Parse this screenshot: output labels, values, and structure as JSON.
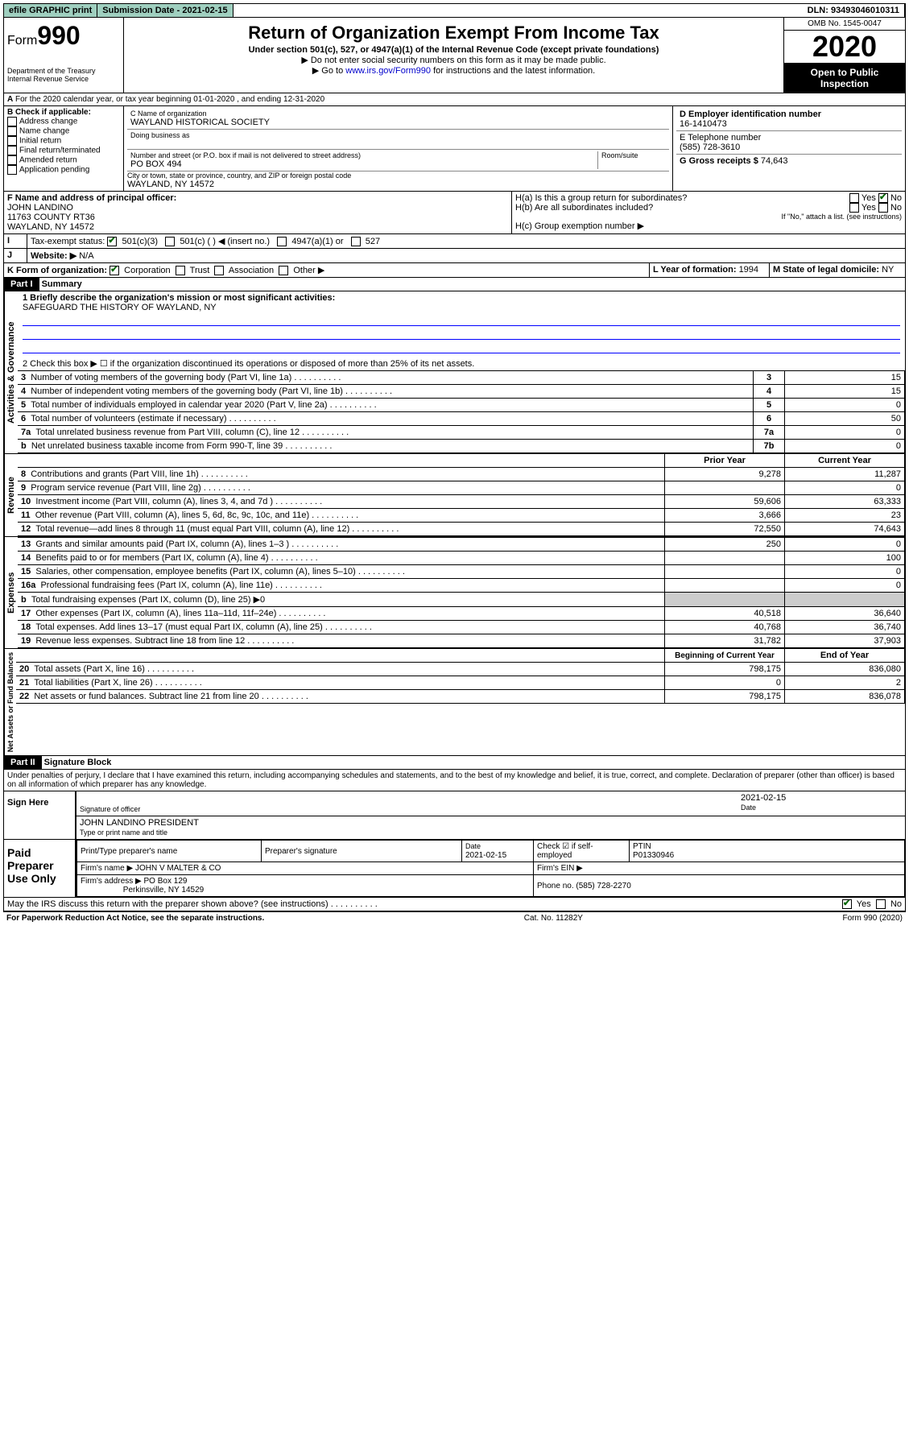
{
  "topbar": {
    "efile": "efile GRAPHIC print",
    "submission_label": "Submission Date - ",
    "submission_date": "2021-02-15",
    "dln": "DLN: 93493046010311"
  },
  "header": {
    "form_prefix": "Form",
    "form_number": "990",
    "dept": "Department of the Treasury",
    "irs": "Internal Revenue Service",
    "title": "Return of Organization Exempt From Income Tax",
    "subtitle": "Under section 501(c), 527, or 4947(a)(1) of the Internal Revenue Code (except private foundations)",
    "note1": "▶ Do not enter social security numbers on this form as it may be made public.",
    "note2_pre": "▶ Go to ",
    "note2_link": "www.irs.gov/Form990",
    "note2_post": " for instructions and the latest information.",
    "omb": "OMB No. 1545-0047",
    "year": "2020",
    "open_public": "Open to Public Inspection"
  },
  "section_a": "For the 2020 calendar year, or tax year beginning 01-01-2020   , and ending 12-31-2020",
  "box_b": {
    "title": "B Check if applicable:",
    "opts": [
      "Address change",
      "Name change",
      "Initial return",
      "Final return/terminated",
      "Amended return",
      "Application pending"
    ]
  },
  "box_c": {
    "label": "C Name of organization",
    "name": "WAYLAND HISTORICAL SOCIETY",
    "dba_label": "Doing business as",
    "addr_label": "Number and street (or P.O. box if mail is not delivered to street address)",
    "room_label": "Room/suite",
    "address": "PO BOX 494",
    "city_label": "City or town, state or province, country, and ZIP or foreign postal code",
    "city": "WAYLAND, NY  14572"
  },
  "box_d": {
    "d_label": "D Employer identification number",
    "ein": "16-1410473",
    "e_label": "E Telephone number",
    "phone": "(585) 728-3610",
    "g_label": "G Gross receipts $ ",
    "g_value": "74,643"
  },
  "box_f": {
    "label": "F  Name and address of principal officer:",
    "name": "JOHN LANDINO",
    "addr1": "11763 COUNTY RT36",
    "addr2": "WAYLAND, NY  14572"
  },
  "box_h": {
    "ha_label": "H(a)  Is this a group return for subordinates?",
    "hb_label": "H(b)  Are all subordinates included?",
    "hb_note": "If \"No,\" attach a list. (see instructions)",
    "hc_label": "H(c)  Group exemption number ▶"
  },
  "tax_exempt": {
    "label": "Tax-exempt status:",
    "opt1": "501(c)(3)",
    "opt2": "501(c) (  ) ◀ (insert no.)",
    "opt3": "4947(a)(1) or",
    "opt4": "527"
  },
  "website": {
    "label": "Website: ▶",
    "value": "N/A"
  },
  "form_org": {
    "label": "K Form of organization:",
    "opts": [
      "Corporation",
      "Trust",
      "Association",
      "Other ▶"
    ]
  },
  "line_l": {
    "label": "L Year of formation: ",
    "value": "1994"
  },
  "line_m": {
    "label": "M State of legal domicile: ",
    "value": "NY"
  },
  "part1": {
    "header": "Part I",
    "title": "Summary",
    "line1_label": "1  Briefly describe the organization's mission or most significant activities:",
    "line1_value": "SAFEGUARD THE HISTORY OF WAYLAND, NY",
    "line2": "2   Check this box ▶ ☐  if the organization discontinued its operations or disposed of more than 25% of its net assets.",
    "vlabels": {
      "ag": "Activities & Governance",
      "rev": "Revenue",
      "exp": "Expenses",
      "na": "Net Assets or Fund Balances"
    },
    "rows_top": [
      {
        "n": "3",
        "label": "Number of voting members of the governing body (Part VI, line 1a)",
        "box": "3",
        "val": "15"
      },
      {
        "n": "4",
        "label": "Number of independent voting members of the governing body (Part VI, line 1b)",
        "box": "4",
        "val": "15"
      },
      {
        "n": "5",
        "label": "Total number of individuals employed in calendar year 2020 (Part V, line 2a)",
        "box": "5",
        "val": "0"
      },
      {
        "n": "6",
        "label": "Total number of volunteers (estimate if necessary)",
        "box": "6",
        "val": "50"
      },
      {
        "n": "7a",
        "label": "Total unrelated business revenue from Part VIII, column (C), line 12",
        "box": "7a",
        "val": "0"
      },
      {
        "n": "b",
        "label": "Net unrelated business taxable income from Form 990-T, line 39",
        "box": "7b",
        "val": "0"
      }
    ],
    "col_headers": {
      "prior": "Prior Year",
      "current": "Current Year"
    },
    "rows_rev": [
      {
        "n": "8",
        "label": "Contributions and grants (Part VIII, line 1h)",
        "prior": "9,278",
        "cur": "11,287"
      },
      {
        "n": "9",
        "label": "Program service revenue (Part VIII, line 2g)",
        "prior": "",
        "cur": "0"
      },
      {
        "n": "10",
        "label": "Investment income (Part VIII, column (A), lines 3, 4, and 7d )",
        "prior": "59,606",
        "cur": "63,333"
      },
      {
        "n": "11",
        "label": "Other revenue (Part VIII, column (A), lines 5, 6d, 8c, 9c, 10c, and 11e)",
        "prior": "3,666",
        "cur": "23"
      },
      {
        "n": "12",
        "label": "Total revenue—add lines 8 through 11 (must equal Part VIII, column (A), line 12)",
        "prior": "72,550",
        "cur": "74,643"
      }
    ],
    "rows_exp": [
      {
        "n": "13",
        "label": "Grants and similar amounts paid (Part IX, column (A), lines 1–3 )",
        "prior": "250",
        "cur": "0"
      },
      {
        "n": "14",
        "label": "Benefits paid to or for members (Part IX, column (A), line 4)",
        "prior": "",
        "cur": "100"
      },
      {
        "n": "15",
        "label": "Salaries, other compensation, employee benefits (Part IX, column (A), lines 5–10)",
        "prior": "",
        "cur": "0"
      },
      {
        "n": "16a",
        "label": "Professional fundraising fees (Part IX, column (A), line 11e)",
        "prior": "",
        "cur": "0"
      },
      {
        "n": "b",
        "label": "Total fundraising expenses (Part IX, column (D), line 25) ▶0",
        "prior": "",
        "cur": "",
        "grey": true
      },
      {
        "n": "17",
        "label": "Other expenses (Part IX, column (A), lines 11a–11d, 11f–24e)",
        "prior": "40,518",
        "cur": "36,640"
      },
      {
        "n": "18",
        "label": "Total expenses. Add lines 13–17 (must equal Part IX, column (A), line 25)",
        "prior": "40,768",
        "cur": "36,740"
      },
      {
        "n": "19",
        "label": "Revenue less expenses. Subtract line 18 from line 12",
        "prior": "31,782",
        "cur": "37,903"
      }
    ],
    "col_headers2": {
      "begin": "Beginning of Current Year",
      "end": "End of Year"
    },
    "rows_na": [
      {
        "n": "20",
        "label": "Total assets (Part X, line 16)",
        "prior": "798,175",
        "cur": "836,080"
      },
      {
        "n": "21",
        "label": "Total liabilities (Part X, line 26)",
        "prior": "0",
        "cur": "2"
      },
      {
        "n": "22",
        "label": "Net assets or fund balances. Subtract line 21 from line 20",
        "prior": "798,175",
        "cur": "836,078"
      }
    ]
  },
  "part2": {
    "header": "Part II",
    "title": "Signature Block",
    "declaration": "Under penalties of perjury, I declare that I have examined this return, including accompanying schedules and statements, and to the best of my knowledge and belief, it is true, correct, and complete. Declaration of preparer (other than officer) is based on all information of which preparer has any knowledge.",
    "sign_here": "Sign Here",
    "sig_officer": "Signature of officer",
    "sig_date": "2021-02-15",
    "date_label": "Date",
    "officer_name": "JOHN LANDINO PRESIDENT",
    "type_name": "Type or print name and title",
    "paid": "Paid Preparer Use Only",
    "prep_name_label": "Print/Type preparer's name",
    "prep_sig_label": "Preparer's signature",
    "prep_date": "2021-02-15",
    "check_self": "Check ☑ if self-employed",
    "ptin_label": "PTIN",
    "ptin": "P01330946",
    "firm_name_label": "Firm's name   ▶",
    "firm_name": "JOHN V MALTER & CO",
    "firm_ein_label": "Firm's EIN ▶",
    "firm_addr_label": "Firm's address ▶",
    "firm_addr1": "PO Box 129",
    "firm_addr2": "Perkinsville, NY  14529",
    "firm_phone_label": "Phone no. ",
    "firm_phone": "(585) 728-2270",
    "discuss": "May the IRS discuss this return with the preparer shown above? (see instructions)",
    "yes": "Yes",
    "no": "No"
  },
  "footer": {
    "paperwork": "For Paperwork Reduction Act Notice, see the separate instructions.",
    "cat": "Cat. No. 11282Y",
    "form": "Form 990 (2020)"
  }
}
